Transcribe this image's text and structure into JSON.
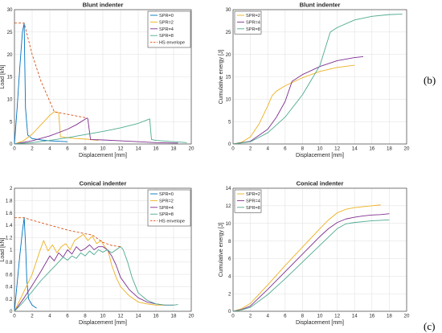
{
  "labels": {
    "b": "(b)",
    "c": "(c)"
  },
  "chart_data": [
    {
      "type": "line",
      "title": "Blunt indenter",
      "xlabel": "Displacement [mm]",
      "ylabel": "Load [kN]",
      "xlim": [
        0,
        20
      ],
      "ylim": [
        0,
        30
      ],
      "xticks": [
        0,
        2,
        4,
        6,
        8,
        10,
        12,
        14,
        16,
        18,
        20
      ],
      "yticks": [
        0,
        5,
        10,
        15,
        20,
        25,
        30
      ],
      "grid": true,
      "legend": "top-right",
      "series": [
        {
          "name": "SPR=0",
          "color": "#0072BD",
          "dash": false,
          "x": [
            0,
            0.3,
            0.6,
            0.9,
            1.1,
            1.15,
            1.25,
            1.5,
            2.0,
            3.0,
            4.0,
            6.0
          ],
          "y": [
            0,
            8,
            17,
            25,
            27,
            20,
            8,
            2,
            1.2,
            0.9,
            0.7,
            0.5
          ]
        },
        {
          "name": "SPR=2",
          "color": "#EDB120",
          "dash": false,
          "x": [
            0,
            1,
            2,
            3,
            4,
            4.5,
            5.0,
            5.2,
            5.6,
            6,
            7,
            8,
            9,
            9.5
          ],
          "y": [
            0,
            0.7,
            2.2,
            4.3,
            6.4,
            7.2,
            7.0,
            1.6,
            1.5,
            1.4,
            1.2,
            1.1,
            0.9,
            0.8
          ]
        },
        {
          "name": "SPR=4",
          "color": "#7E2F8E",
          "dash": false,
          "x": [
            0,
            2,
            4,
            6,
            7,
            8.2,
            8.3,
            8.6,
            10,
            12,
            14,
            16,
            18.5
          ],
          "y": [
            0,
            0.7,
            1.8,
            3.3,
            4.3,
            5.8,
            5.6,
            1.0,
            0.9,
            0.7,
            0.5,
            0.3,
            0.2
          ]
        },
        {
          "name": "SPR=8",
          "color": "#4DAA90",
          "dash": false,
          "x": [
            0,
            2,
            4,
            6,
            8,
            10,
            12,
            14,
            15.3,
            15.5,
            16,
            18,
            19.5
          ],
          "y": [
            0,
            0.3,
            0.8,
            1.4,
            2.1,
            2.8,
            3.6,
            4.6,
            5.6,
            1.0,
            0.8,
            0.5,
            0.3
          ]
        },
        {
          "name": "HS envelope",
          "color": "#D95319",
          "dash": true,
          "x": [
            0,
            1.1,
            2.0,
            3.0,
            4.0,
            4.5,
            8.2
          ],
          "y": [
            27,
            27,
            20,
            14,
            9.5,
            7.2,
            5.8
          ]
        }
      ]
    },
    {
      "type": "line",
      "title": "Blunt indenter",
      "xlabel": "Displacement [mm]",
      "ylabel": "Cumulative energy [J]",
      "xlim": [
        0,
        20
      ],
      "ylim": [
        0,
        30
      ],
      "xticks": [
        0,
        2,
        4,
        6,
        8,
        10,
        12,
        14,
        16,
        18,
        20
      ],
      "yticks": [
        0,
        5,
        10,
        15,
        20,
        25,
        30
      ],
      "grid": true,
      "legend": "top-left",
      "series": [
        {
          "name": "SPR=2",
          "color": "#EDB120",
          "dash": false,
          "x": [
            0,
            1,
            2,
            3,
            4,
            4.5,
            5,
            6,
            8,
            10,
            12,
            14
          ],
          "y": [
            0,
            0.4,
            1.6,
            4.5,
            8.5,
            10.8,
            11.8,
            13.0,
            14.8,
            16.2,
            17.1,
            17.6
          ]
        },
        {
          "name": "SPR=4",
          "color": "#7E2F8E",
          "dash": false,
          "x": [
            0,
            2,
            4,
            5,
            6,
            6.8,
            8,
            10,
            12,
            14,
            15
          ],
          "y": [
            0,
            0.6,
            3.3,
            6.0,
            9.5,
            14.0,
            15.5,
            17.3,
            18.6,
            19.3,
            19.5
          ]
        },
        {
          "name": "SPR=8",
          "color": "#4DAA90",
          "dash": false,
          "x": [
            0,
            2,
            4,
            6,
            8,
            10,
            11.2,
            12,
            14,
            16,
            18,
            19.5
          ],
          "y": [
            0,
            0.5,
            2.5,
            6.0,
            11.0,
            17.5,
            25.0,
            26.0,
            27.7,
            28.5,
            28.9,
            29.0
          ]
        }
      ]
    },
    {
      "type": "line",
      "title": "Conical indenter",
      "xlabel": "Displacement [mm]",
      "ylabel": "Load [kN]",
      "xlim": [
        0,
        20
      ],
      "ylim": [
        0,
        2
      ],
      "xticks": [
        0,
        2,
        4,
        6,
        8,
        10,
        12,
        14,
        16,
        18,
        20
      ],
      "yticks": [
        0,
        0.2,
        0.4,
        0.6,
        0.8,
        1,
        1.2,
        1.4,
        1.6,
        1.8,
        2
      ],
      "grid": true,
      "legend": "top-right",
      "series": [
        {
          "name": "SPR=0",
          "color": "#0072BD",
          "dash": false,
          "x": [
            0,
            0.3,
            0.6,
            0.9,
            1.1,
            1.25,
            1.4,
            1.6,
            2.0,
            2.5
          ],
          "y": [
            0,
            0.45,
            0.9,
            1.3,
            1.52,
            1.1,
            0.5,
            0.2,
            0.1,
            0.05
          ]
        },
        {
          "name": "SPR=2",
          "color": "#EDB120",
          "dash": false,
          "x": [
            0,
            1,
            2,
            2.8,
            3.3,
            3.8,
            4.3,
            4.8,
            5.3,
            5.8,
            6.3,
            6.8,
            7.3,
            7.8,
            8.3,
            8.8,
            9.3,
            9.8,
            10.2,
            10.6,
            11.0,
            11.5,
            12.0,
            13.0,
            14.0,
            15.0,
            16.0,
            17.0
          ],
          "y": [
            0,
            0.3,
            0.6,
            0.95,
            1.15,
            0.98,
            1.08,
            0.95,
            1.05,
            1.1,
            1.0,
            1.15,
            1.2,
            1.25,
            1.15,
            1.22,
            1.1,
            1.15,
            1.05,
            0.98,
            0.75,
            0.55,
            0.4,
            0.25,
            0.15,
            0.12,
            0.1,
            0.1
          ]
        },
        {
          "name": "SPR=4",
          "color": "#7E2F8E",
          "dash": false,
          "x": [
            0,
            1,
            2,
            3,
            4,
            4.5,
            5,
            5.5,
            6,
            6.5,
            7,
            7.5,
            8,
            8.5,
            9,
            9.5,
            10,
            10.5,
            11,
            11.5,
            12,
            13,
            14,
            15,
            16,
            17,
            18
          ],
          "y": [
            0,
            0.2,
            0.42,
            0.65,
            0.9,
            0.82,
            0.95,
            0.88,
            1.0,
            0.93,
            1.05,
            0.98,
            1.02,
            1.08,
            1.0,
            1.05,
            1.05,
            1.0,
            0.9,
            0.75,
            0.55,
            0.35,
            0.22,
            0.15,
            0.12,
            0.1,
            0.1
          ]
        },
        {
          "name": "SPR=8",
          "color": "#4DAA90",
          "dash": false,
          "x": [
            0,
            1,
            2,
            3,
            4,
            5,
            5.5,
            6,
            6.5,
            7,
            7.5,
            8,
            8.5,
            9,
            9.5,
            10,
            10.5,
            11,
            11.5,
            12,
            12.3,
            12.8,
            13.3,
            14,
            15,
            16,
            17,
            18,
            18.5
          ],
          "y": [
            0,
            0.15,
            0.32,
            0.5,
            0.65,
            0.8,
            0.88,
            0.83,
            0.9,
            0.86,
            0.95,
            0.9,
            0.98,
            0.92,
            1.0,
            0.96,
            1.0,
            0.95,
            1.0,
            1.05,
            1.0,
            0.8,
            0.55,
            0.3,
            0.18,
            0.12,
            0.1,
            0.1,
            0.11
          ]
        },
        {
          "name": "HS envelope",
          "color": "#D95319",
          "dash": true,
          "x": [
            0,
            1.1,
            2,
            4,
            6,
            8,
            8.8,
            10,
            11,
            12
          ],
          "y": [
            1.52,
            1.52,
            1.48,
            1.4,
            1.32,
            1.26,
            1.24,
            1.12,
            1.07,
            1.05
          ]
        }
      ]
    },
    {
      "type": "line",
      "title": "Conical indenter",
      "xlabel": "Displacement [mm]",
      "ylabel": "Cumulative energy [J]",
      "xlim": [
        0,
        20
      ],
      "ylim": [
        0,
        14
      ],
      "xticks": [
        0,
        2,
        4,
        6,
        8,
        10,
        12,
        14,
        16,
        18,
        20
      ],
      "yticks": [
        0,
        2,
        4,
        6,
        8,
        10,
        12,
        14
      ],
      "grid": true,
      "legend": "top-left",
      "series": [
        {
          "name": "SPR=2",
          "color": "#EDB120",
          "dash": false,
          "x": [
            0,
            1,
            2,
            4,
            6,
            8,
            10,
            11,
            12,
            13,
            14,
            15,
            16,
            17
          ],
          "y": [
            0,
            0.3,
            0.9,
            3.0,
            5.2,
            7.3,
            9.4,
            10.4,
            11.2,
            11.6,
            11.8,
            11.9,
            12.0,
            12.1
          ]
        },
        {
          "name": "SPR=4",
          "color": "#7E2F8E",
          "dash": false,
          "x": [
            0,
            1,
            2,
            4,
            6,
            8,
            10,
            11,
            12,
            13,
            14,
            15,
            16,
            17,
            18
          ],
          "y": [
            0,
            0.2,
            0.6,
            2.5,
            4.5,
            6.5,
            8.5,
            9.4,
            10.1,
            10.5,
            10.7,
            10.85,
            10.95,
            11.0,
            11.1
          ]
        },
        {
          "name": "SPR=8",
          "color": "#4DAA90",
          "dash": false,
          "x": [
            0,
            1,
            2,
            4,
            6,
            8,
            10,
            12,
            13,
            14,
            15,
            16,
            17,
            18
          ],
          "y": [
            0,
            0.15,
            0.45,
            1.9,
            3.7,
            5.6,
            7.5,
            9.4,
            9.95,
            10.1,
            10.2,
            10.3,
            10.35,
            10.4
          ]
        }
      ]
    }
  ]
}
